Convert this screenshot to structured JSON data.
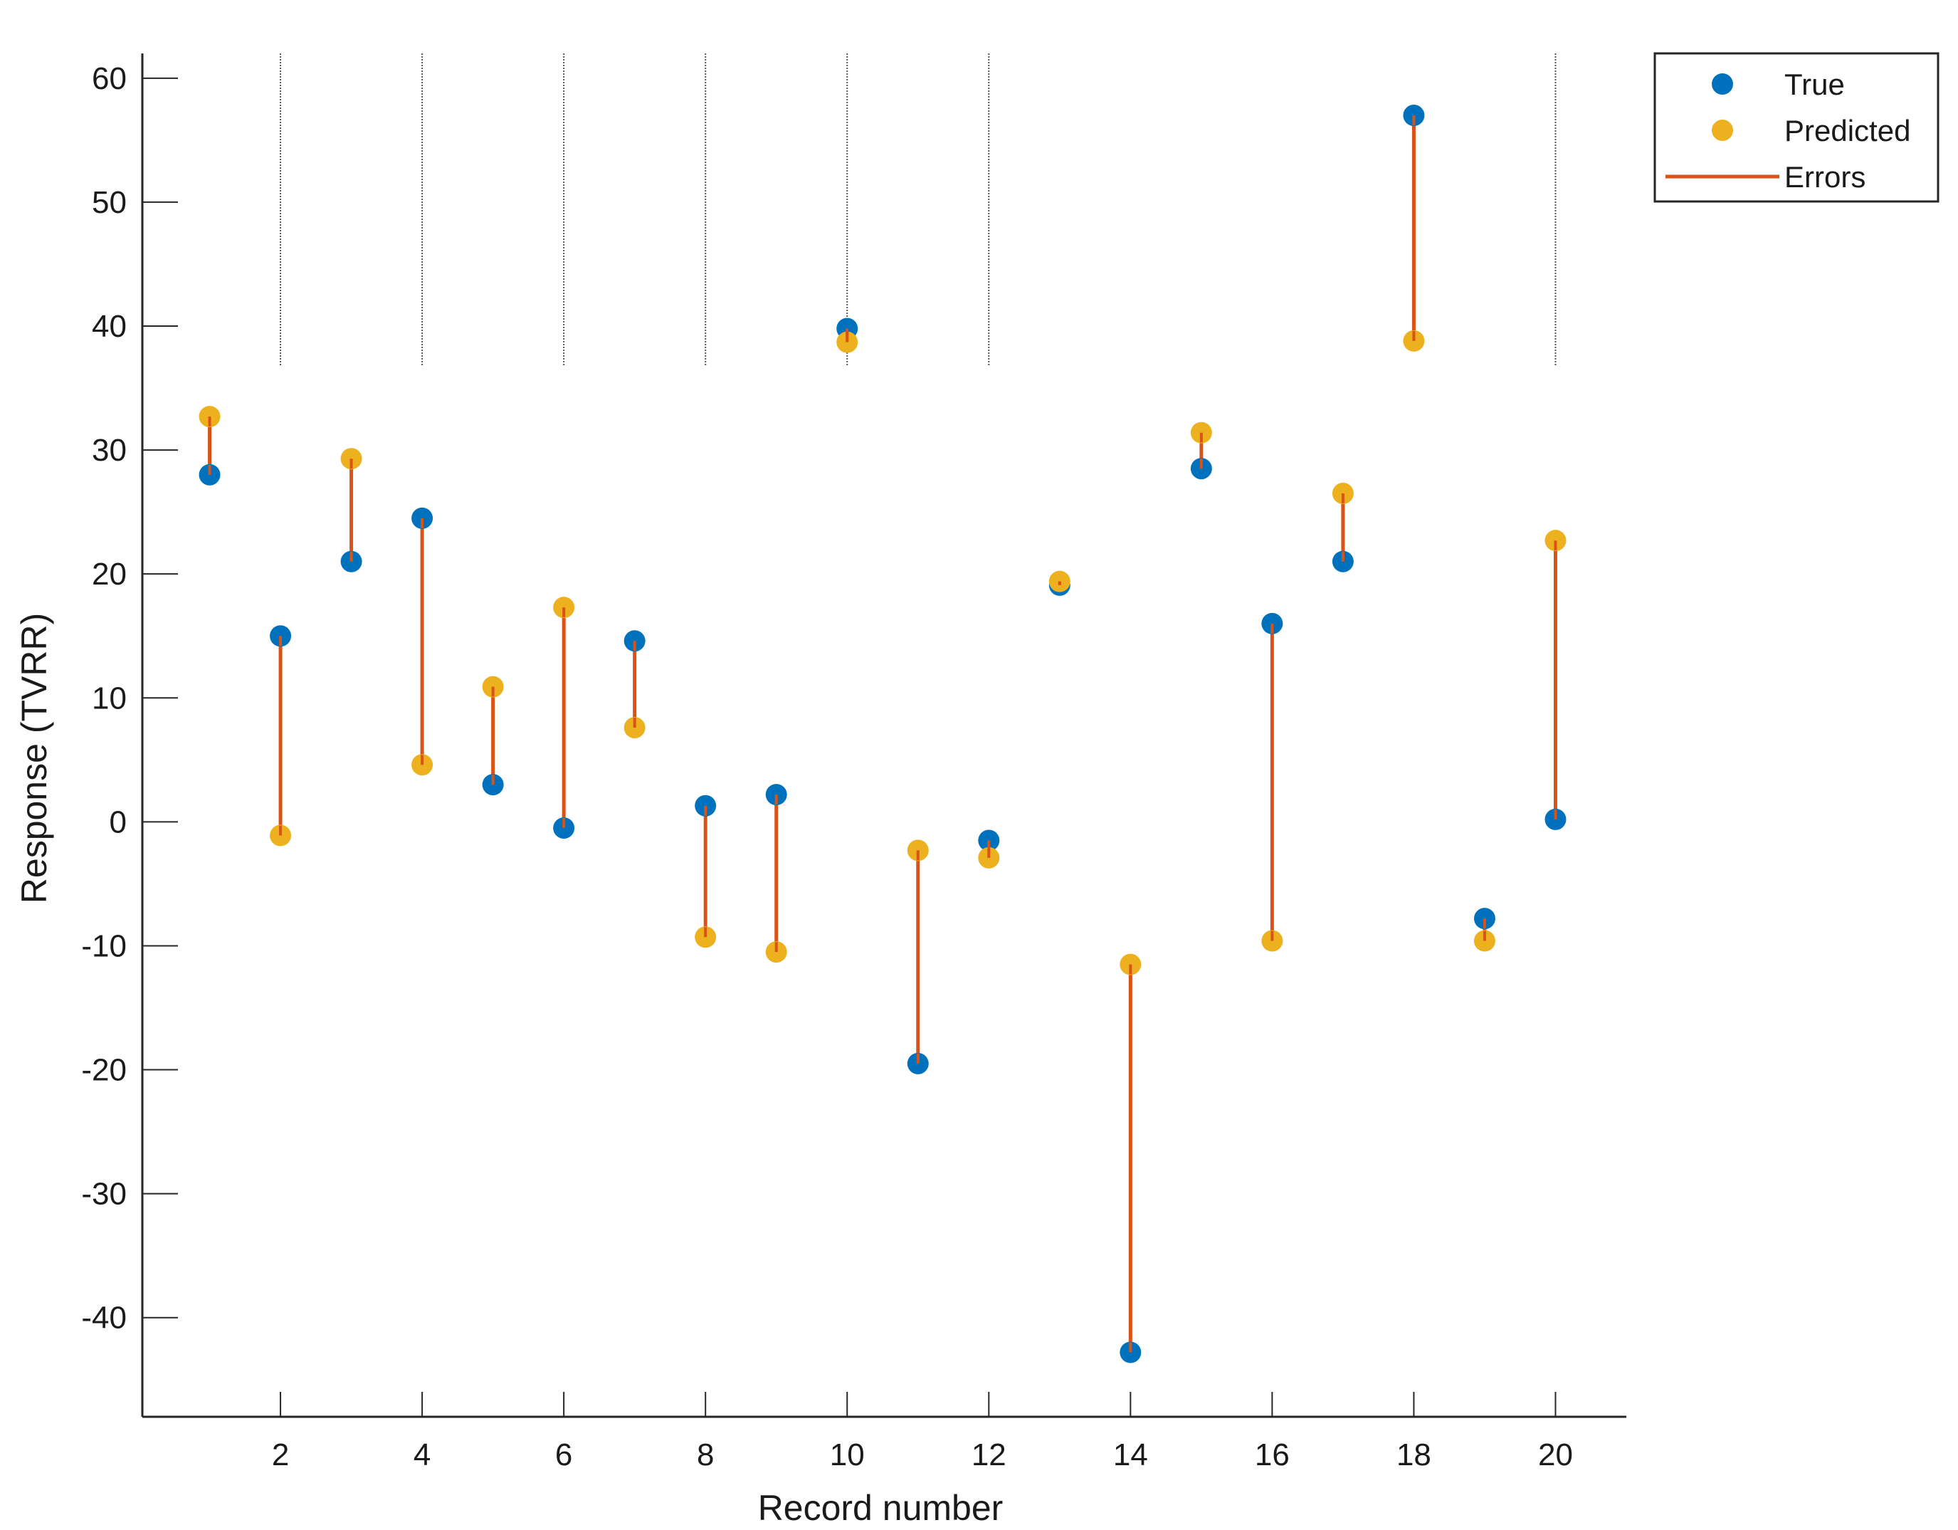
{
  "chart_data": {
    "type": "scatter",
    "title": "",
    "xlabel": "Record number",
    "ylabel": "Response (TVRR)",
    "xlim": [
      0.05,
      21
    ],
    "ylim": [
      -48,
      62
    ],
    "xticks": [
      2,
      4,
      6,
      8,
      10,
      12,
      14,
      16,
      18,
      20
    ],
    "yticks": [
      -40,
      -30,
      -20,
      -10,
      0,
      10,
      20,
      30,
      40,
      50,
      60
    ],
    "x": [
      1,
      2,
      3,
      4,
      5,
      6,
      7,
      8,
      9,
      10,
      11,
      12,
      13,
      14,
      15,
      16,
      17,
      18,
      19,
      20
    ],
    "series": [
      {
        "name": "True",
        "color": "#0072BD",
        "marker": "circle",
        "values": [
          28,
          15,
          21,
          24.5,
          3,
          -0.5,
          14.6,
          1.3,
          2.2,
          39.8,
          -19.5,
          -1.5,
          19.1,
          -42.8,
          28.5,
          16,
          21,
          57,
          -7.8,
          0.2
        ]
      },
      {
        "name": "Predicted",
        "color": "#EDB120",
        "marker": "circle",
        "values": [
          32.7,
          -1.1,
          29.3,
          4.6,
          10.9,
          17.3,
          7.6,
          -9.3,
          -10.5,
          38.7,
          -2.3,
          -2.9,
          19.4,
          -11.5,
          31.4,
          -9.6,
          26.5,
          38.8,
          -9.6,
          22.7
        ]
      }
    ],
    "errors": {
      "name": "Errors",
      "color": "#D95319"
    },
    "legend": {
      "position": "top-right outside",
      "entries": [
        {
          "label": "True",
          "color": "#0072BD",
          "kind": "marker"
        },
        {
          "label": "Predicted",
          "color": "#EDB120",
          "kind": "marker"
        },
        {
          "label": "Errors",
          "color": "#D95319",
          "kind": "line"
        }
      ]
    },
    "guide_lines_at_x": [
      2,
      4,
      6,
      8,
      10,
      12,
      20
    ]
  }
}
